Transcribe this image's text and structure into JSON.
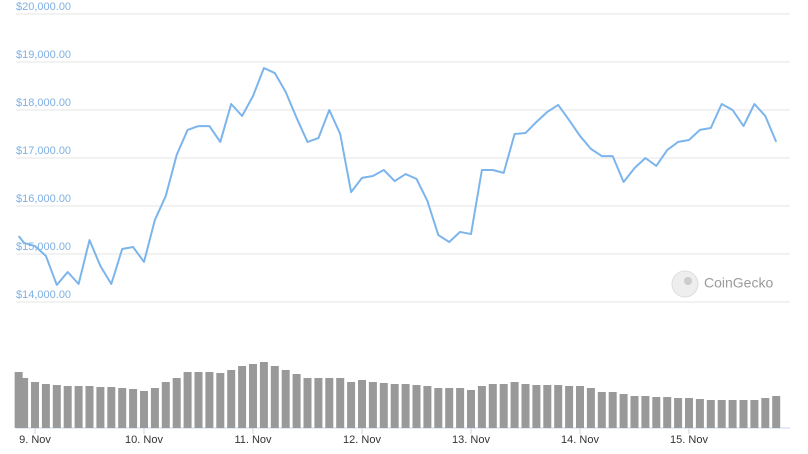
{
  "chart_data": {
    "type": "line",
    "color": "#7cb5ec",
    "volume_color": "#999999",
    "grid": true,
    "watermark": "CoinGecko",
    "x": [
      8.85,
      8.9,
      9.0,
      9.1,
      9.2,
      9.3,
      9.4,
      9.5,
      9.6,
      9.7,
      9.8,
      9.9,
      10.0,
      10.1,
      10.2,
      10.3,
      10.4,
      10.5,
      10.6,
      10.7,
      10.8,
      10.9,
      11.0,
      11.1,
      11.2,
      11.3,
      11.4,
      11.5,
      11.6,
      11.7,
      11.8,
      11.9,
      12.0,
      12.1,
      12.2,
      12.3,
      12.4,
      12.5,
      12.6,
      12.7,
      12.8,
      12.9,
      13.0,
      13.1,
      13.2,
      13.3,
      13.4,
      13.5,
      13.6,
      13.7,
      13.8,
      13.9,
      14.0,
      14.1,
      14.2,
      14.3,
      14.4,
      14.5,
      14.6,
      14.7,
      14.8,
      14.9,
      15.0,
      15.1,
      15.2,
      15.3,
      15.4,
      15.5,
      15.6,
      15.7,
      15.8
    ],
    "values": [
      15375,
      15230,
      15165,
      14960,
      14355,
      14625,
      14375,
      15290,
      14750,
      14375,
      15105,
      15145,
      14835,
      15710,
      16210,
      17065,
      17585,
      17665,
      17665,
      17335,
      18125,
      17875,
      18290,
      18875,
      18770,
      18375,
      17835,
      17335,
      17415,
      18000,
      17500,
      16290,
      16585,
      16625,
      16750,
      16520,
      16665,
      16565,
      16105,
      15395,
      15250,
      15460,
      15415,
      16750,
      16750,
      16690,
      17500,
      17520,
      17750,
      17960,
      18105,
      17790,
      17460,
      17190,
      17040,
      17040,
      16500,
      16790,
      17000,
      16835,
      17165,
      17335,
      17375,
      17585,
      17625,
      18125,
      18000,
      17665,
      18125,
      17875,
      17335
    ],
    "volume": [
      56,
      50,
      46,
      44,
      43,
      42,
      42,
      42,
      41,
      41,
      40,
      39,
      37,
      40,
      46,
      50,
      56,
      56,
      56,
      55,
      58,
      62,
      64,
      66,
      62,
      58,
      54,
      50,
      50,
      50,
      50,
      46,
      48,
      46,
      45,
      44,
      44,
      43,
      42,
      40,
      40,
      40,
      38,
      42,
      44,
      44,
      46,
      44,
      43,
      43,
      43,
      42,
      42,
      40,
      36,
      36,
      34,
      32,
      32,
      31,
      31,
      30,
      30,
      29,
      28,
      28,
      28,
      28,
      28,
      30,
      32
    ],
    "xlim": [
      8.85,
      15.8
    ],
    "xticks": [
      {
        "value": 9,
        "label": "9. Nov"
      },
      {
        "value": 10,
        "label": "10. Nov"
      },
      {
        "value": 11,
        "label": "11. Nov"
      },
      {
        "value": 12,
        "label": "12. Nov"
      },
      {
        "value": 13,
        "label": "13. Nov"
      },
      {
        "value": 14,
        "label": "14. Nov"
      },
      {
        "value": 15,
        "label": "15. Nov"
      }
    ],
    "ylim": [
      14000,
      20000
    ],
    "yticks": [
      {
        "value": 14000,
        "label": "$14,000.00"
      },
      {
        "value": 15000,
        "label": "$15,000.00"
      },
      {
        "value": 16000,
        "label": "$16,000.00"
      },
      {
        "value": 17000,
        "label": "$17,000.00"
      },
      {
        "value": 18000,
        "label": "$18,000.00"
      },
      {
        "value": 19000,
        "label": "$19,000.00"
      },
      {
        "value": 20000,
        "label": "$20,000.00"
      }
    ],
    "y2lim": [
      0,
      70
    ]
  }
}
